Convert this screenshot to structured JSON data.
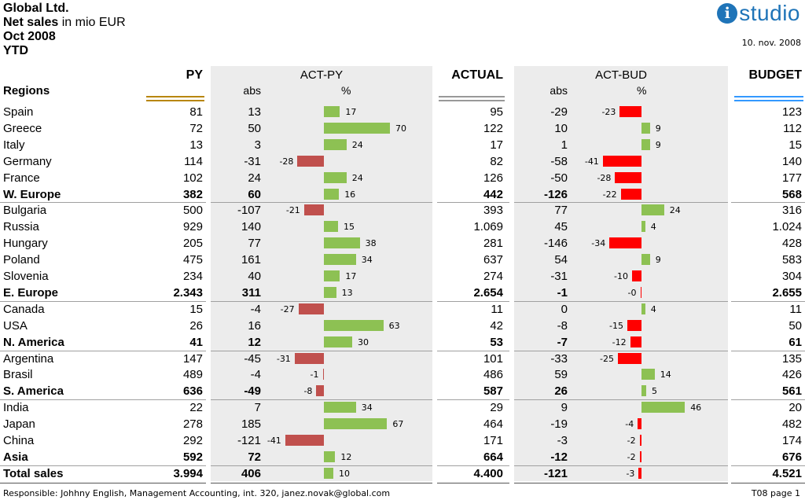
{
  "header": {
    "company": "Global Ltd.",
    "metric_bold": "Net sales",
    "metric_unit": " in mio EUR",
    "period": "Oct 2008",
    "scope": "YTD",
    "date": "10. nov. 2008",
    "logo_letter": "i",
    "logo_text": "studio"
  },
  "columns": {
    "regions": "Regions",
    "py": "PY",
    "act_py": "ACT-PY",
    "actual": "ACTUAL",
    "act_bud": "ACT-BUD",
    "budget": "BUDGET",
    "abs": "abs",
    "pct": "%"
  },
  "colors": {
    "positive": "#8dc153",
    "negative_py": "#c0504d",
    "negative_bud": "#ff0000",
    "py_underline": "#b8860b",
    "actual_underline": "#999999",
    "budget_underline": "#3399ff",
    "band": "#ececec"
  },
  "footer": {
    "responsible": "Responsible: Johhny English, Management Accounting, int. 320, janez.novak@global.com",
    "page": "T08  page 1"
  },
  "chart_data": {
    "type": "table",
    "rows": [
      {
        "name": "Spain",
        "py": "81",
        "act_py_abs": "13",
        "act_py_pct": 17,
        "actual": "95",
        "act_bud_abs": "-29",
        "act_bud_pct": -23,
        "budget": "123",
        "bold": false
      },
      {
        "name": "Greece",
        "py": "72",
        "act_py_abs": "50",
        "act_py_pct": 70,
        "actual": "122",
        "act_bud_abs": "10",
        "act_bud_pct": 9,
        "budget": "112",
        "bold": false
      },
      {
        "name": "Italy",
        "py": "13",
        "act_py_abs": "3",
        "act_py_pct": 24,
        "actual": "17",
        "act_bud_abs": "1",
        "act_bud_pct": 9,
        "budget": "15",
        "bold": false
      },
      {
        "name": "Germany",
        "py": "114",
        "act_py_abs": "-31",
        "act_py_pct": -28,
        "actual": "82",
        "act_bud_abs": "-58",
        "act_bud_pct": -41,
        "budget": "140",
        "bold": false
      },
      {
        "name": "France",
        "py": "102",
        "act_py_abs": "24",
        "act_py_pct": 24,
        "actual": "126",
        "act_bud_abs": "-50",
        "act_bud_pct": -28,
        "budget": "177",
        "bold": false
      },
      {
        "name": "W. Europe",
        "py": "382",
        "act_py_abs": "60",
        "act_py_pct": 16,
        "actual": "442",
        "act_bud_abs": "-126",
        "act_bud_pct": -22,
        "budget": "568",
        "bold": true
      },
      {
        "name": "Bulgaria",
        "py": "500",
        "act_py_abs": "-107",
        "act_py_pct": -21,
        "actual": "393",
        "act_bud_abs": "77",
        "act_bud_pct": 24,
        "budget": "316",
        "bold": false
      },
      {
        "name": "Russia",
        "py": "929",
        "act_py_abs": "140",
        "act_py_pct": 15,
        "actual": "1.069",
        "act_bud_abs": "45",
        "act_bud_pct": 4,
        "budget": "1.024",
        "bold": false
      },
      {
        "name": "Hungary",
        "py": "205",
        "act_py_abs": "77",
        "act_py_pct": 38,
        "actual": "281",
        "act_bud_abs": "-146",
        "act_bud_pct": -34,
        "budget": "428",
        "bold": false
      },
      {
        "name": "Poland",
        "py": "475",
        "act_py_abs": "161",
        "act_py_pct": 34,
        "actual": "637",
        "act_bud_abs": "54",
        "act_bud_pct": 9,
        "budget": "583",
        "bold": false
      },
      {
        "name": "Slovenia",
        "py": "234",
        "act_py_abs": "40",
        "act_py_pct": 17,
        "actual": "274",
        "act_bud_abs": "-31",
        "act_bud_pct": -10,
        "budget": "304",
        "bold": false
      },
      {
        "name": "E. Europe",
        "py": "2.343",
        "act_py_abs": "311",
        "act_py_pct": 13,
        "actual": "2.654",
        "act_bud_abs": "-1",
        "act_bud_pct": -0.04,
        "act_bud_pct_label": "-0",
        "budget": "2.655",
        "bold": true
      },
      {
        "name": "Canada",
        "py": "15",
        "act_py_abs": "-4",
        "act_py_pct": -27,
        "actual": "11",
        "act_bud_abs": "0",
        "act_bud_pct": 4,
        "budget": "11",
        "bold": false
      },
      {
        "name": "USA",
        "py": "26",
        "act_py_abs": "16",
        "act_py_pct": 63,
        "actual": "42",
        "act_bud_abs": "-8",
        "act_bud_pct": -15,
        "budget": "50",
        "bold": false
      },
      {
        "name": "N. America",
        "py": "41",
        "act_py_abs": "12",
        "act_py_pct": 30,
        "actual": "53",
        "act_bud_abs": "-7",
        "act_bud_pct": -12,
        "budget": "61",
        "bold": true
      },
      {
        "name": "Argentina",
        "py": "147",
        "act_py_abs": "-45",
        "act_py_pct": -31,
        "actual": "101",
        "act_bud_abs": "-33",
        "act_bud_pct": -25,
        "budget": "135",
        "bold": false
      },
      {
        "name": "Brasil",
        "py": "489",
        "act_py_abs": "-4",
        "act_py_pct": -1,
        "actual": "486",
        "act_bud_abs": "59",
        "act_bud_pct": 14,
        "budget": "426",
        "bold": false
      },
      {
        "name": "S. America",
        "py": "636",
        "act_py_abs": "-49",
        "act_py_pct": -8,
        "actual": "587",
        "act_bud_abs": "26",
        "act_bud_pct": 5,
        "budget": "561",
        "bold": true
      },
      {
        "name": "India",
        "py": "22",
        "act_py_abs": "7",
        "act_py_pct": 34,
        "actual": "29",
        "act_bud_abs": "9",
        "act_bud_pct": 46,
        "budget": "20",
        "bold": false
      },
      {
        "name": "Japan",
        "py": "278",
        "act_py_abs": "185",
        "act_py_pct": 67,
        "actual": "464",
        "act_bud_abs": "-19",
        "act_bud_pct": -4,
        "budget": "482",
        "bold": false
      },
      {
        "name": "China",
        "py": "292",
        "act_py_abs": "-121",
        "act_py_pct": -41,
        "actual": "171",
        "act_bud_abs": "-3",
        "act_bud_pct": -2,
        "budget": "174",
        "bold": false
      },
      {
        "name": "Asia",
        "py": "592",
        "act_py_abs": "72",
        "act_py_pct": 12,
        "actual": "664",
        "act_bud_abs": "-12",
        "act_bud_pct": -2,
        "budget": "676",
        "bold": true
      },
      {
        "name": "Total sales",
        "py": "3.994",
        "act_py_abs": "406",
        "act_py_pct": 10,
        "actual": "4.400",
        "act_bud_abs": "-121",
        "act_bud_pct": -3,
        "budget": "4.521",
        "bold": true
      }
    ],
    "group_separators_after": [
      "W. Europe",
      "E. Europe",
      "N. America",
      "S. America",
      "Asia"
    ]
  }
}
